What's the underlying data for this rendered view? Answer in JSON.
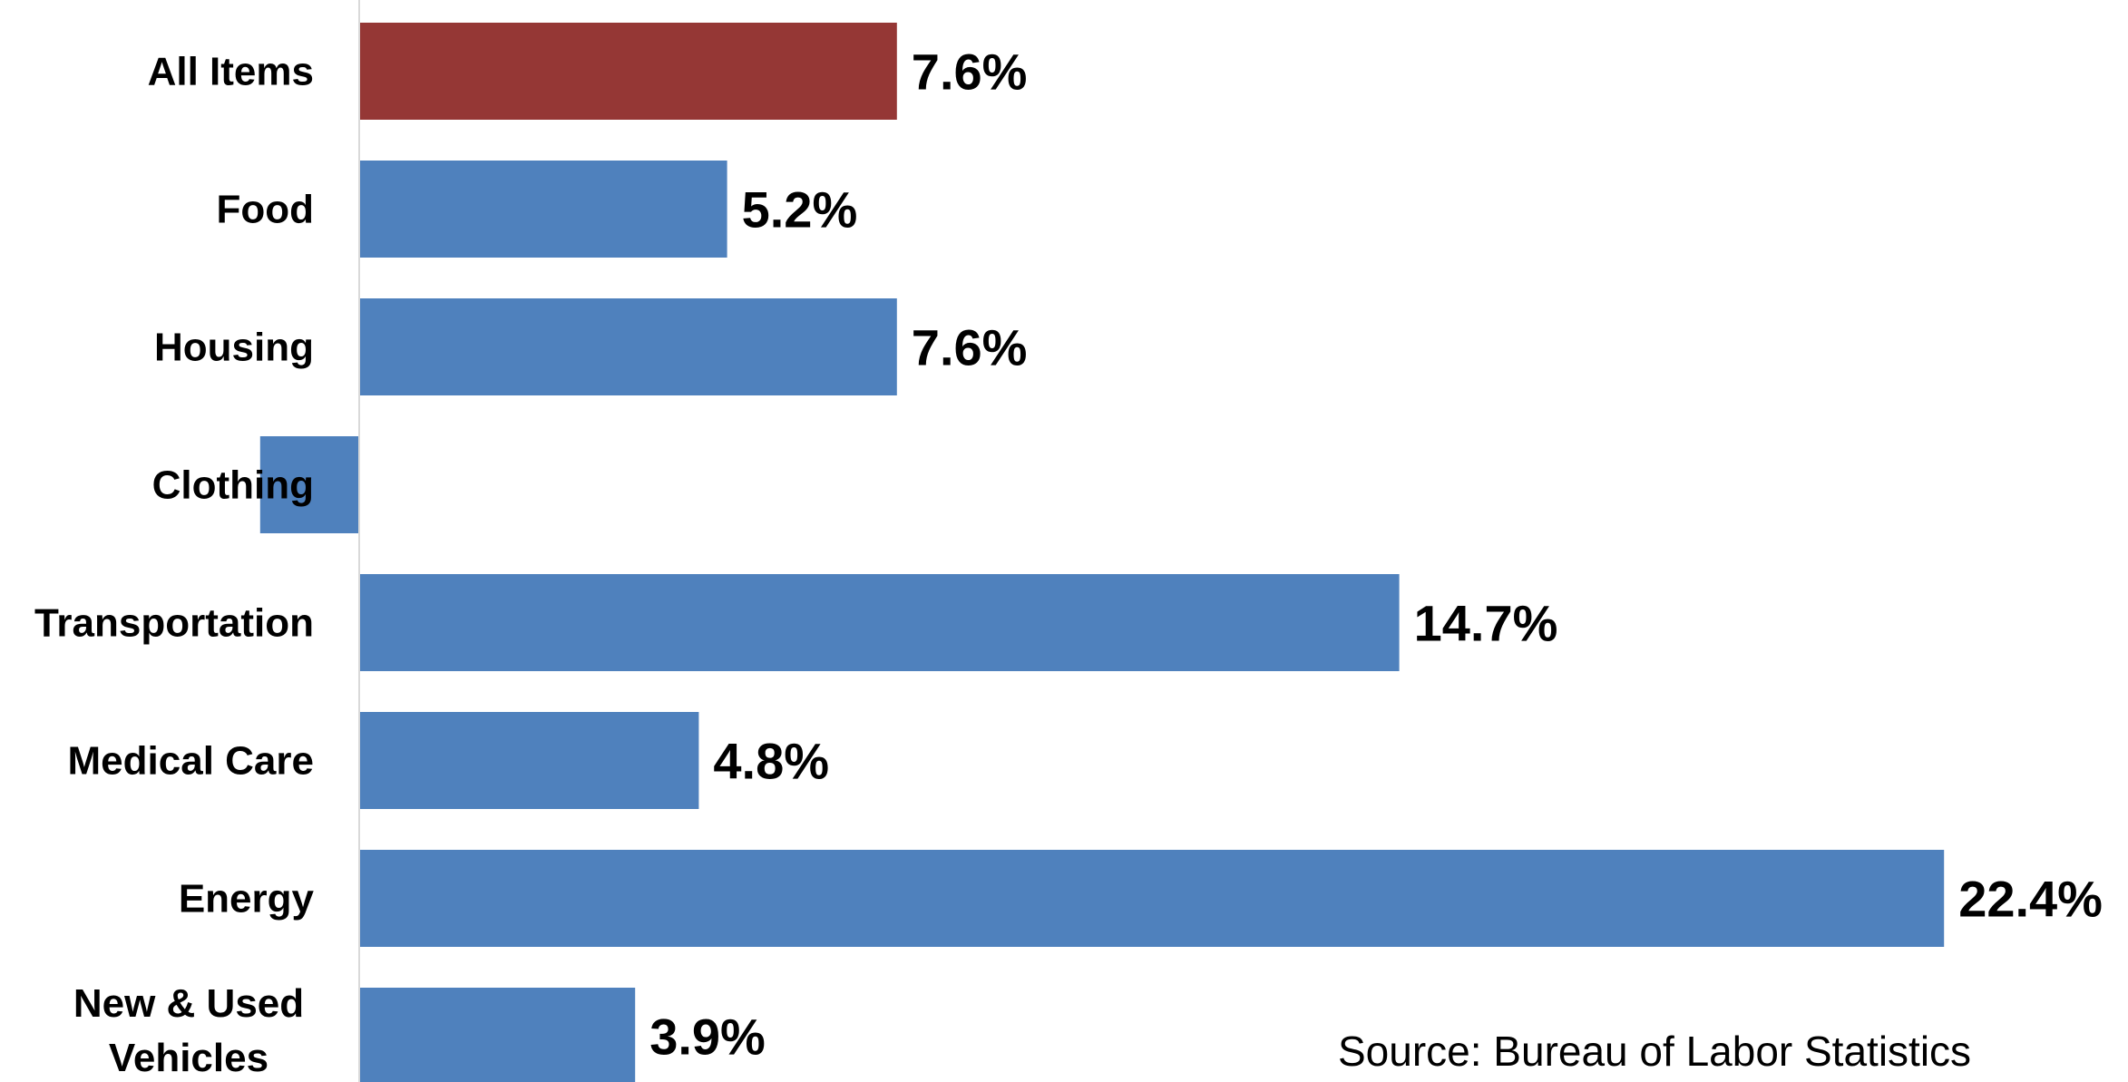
{
  "chart_data": {
    "type": "bar",
    "orientation": "horizontal",
    "categories": [
      "All Items",
      "Food",
      "Housing",
      "Clothing",
      "Transportation",
      "Medical Care",
      "Energy",
      "New & Used Vehicles"
    ],
    "values": [
      7.6,
      5.2,
      7.6,
      -1.4,
      14.7,
      4.8,
      22.4,
      3.9
    ],
    "data_labels": [
      "7.6%",
      "5.2%",
      "7.6%",
      "",
      "14.7%",
      "4.8%",
      "22.4%",
      "3.9%"
    ],
    "colors": [
      "#953735",
      "#4F81BD",
      "#4F81BD",
      "#4F81BD",
      "#4F81BD",
      "#4F81BD",
      "#4F81BD",
      "#4F81BD"
    ],
    "xlim": [
      -5,
      25
    ],
    "title": "",
    "xlabel": "",
    "ylabel": "",
    "grid": false,
    "legend": "none"
  },
  "source": "Source: Bureau of Labor Statistics"
}
